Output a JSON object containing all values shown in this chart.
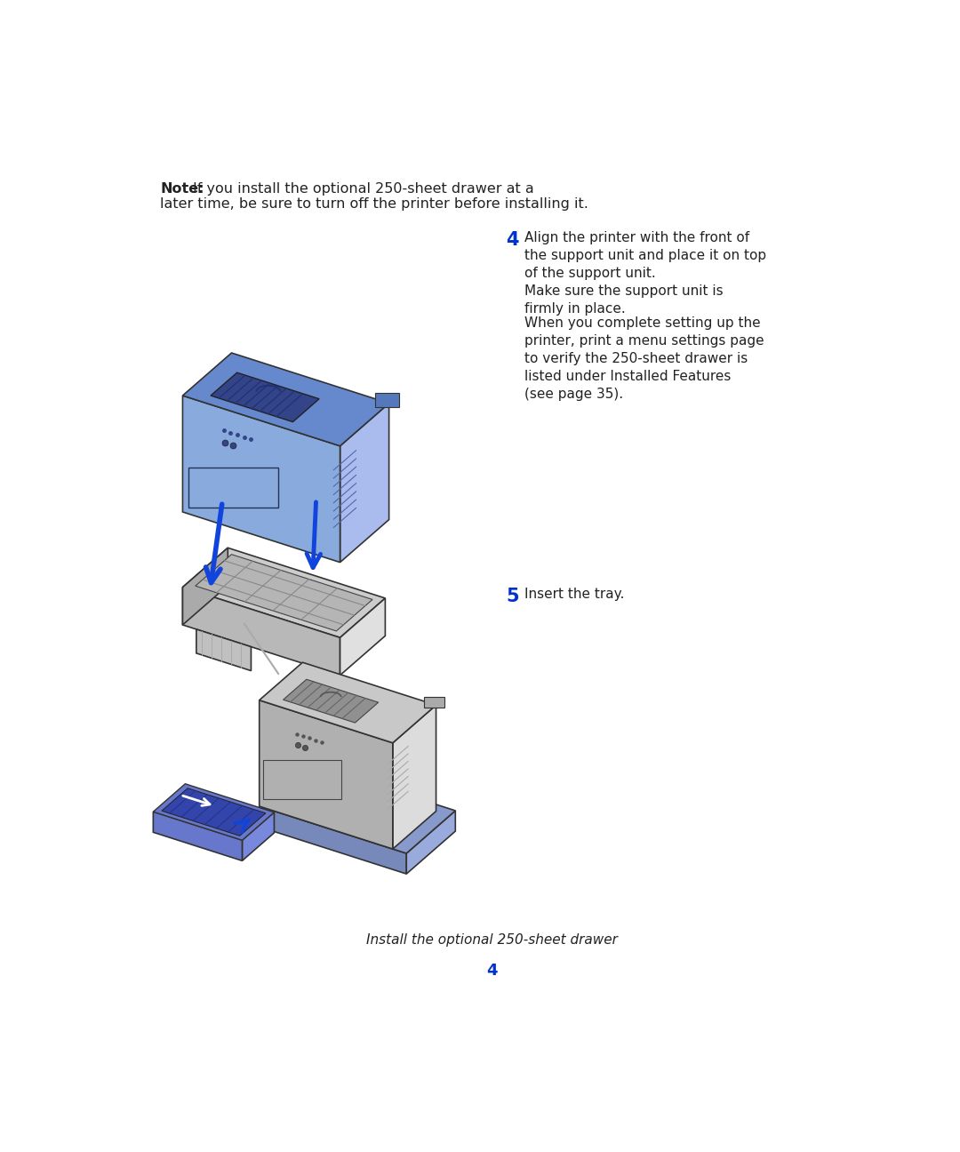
{
  "bg_color": "#ffffff",
  "note_bold": "Note:",
  "note_text1": "If you install the optional 250-sheet drawer at a",
  "note_text2": "later time, be sure to turn off the printer before installing it.",
  "step4_num": "4",
  "step4_para1": "Align the printer with the front of\nthe support unit and place it on top\nof the support unit.",
  "step4_para2": "Make sure the support unit is\nfirmly in place.",
  "step4_para3": "When you complete setting up the\nprinter, print a menu settings page\nto verify the 250-sheet drawer is\nlisted under Installed Features\n(see page 35).",
  "step5_num": "5",
  "step5_text": "Insert the tray.",
  "footer_text": "Install the optional 250-sheet drawer",
  "page_num": "4",
  "blue_num": "#0033cc",
  "arrow_blue": "#1144dd",
  "text_color": "#222222",
  "printer_blue_top": "#6688cc",
  "printer_blue_left": "#88aadd",
  "printer_blue_right": "#aabbee",
  "printer_blue_dark": "#4466aa",
  "printer_gray_top": "#c8c8c8",
  "printer_gray_left": "#b0b0b0",
  "printer_gray_right": "#dcdcdc",
  "drawer_gray_top": "#cccccc",
  "drawer_gray_left": "#b8b8b8",
  "drawer_gray_right": "#e0e0e0",
  "stand_blue_top": "#8899cc",
  "stand_blue_left": "#7788bb",
  "stand_blue_right": "#99aadd",
  "tray_blue_top": "#6677cc",
  "tray_blue_right": "#7788dd",
  "outline": "#333333"
}
